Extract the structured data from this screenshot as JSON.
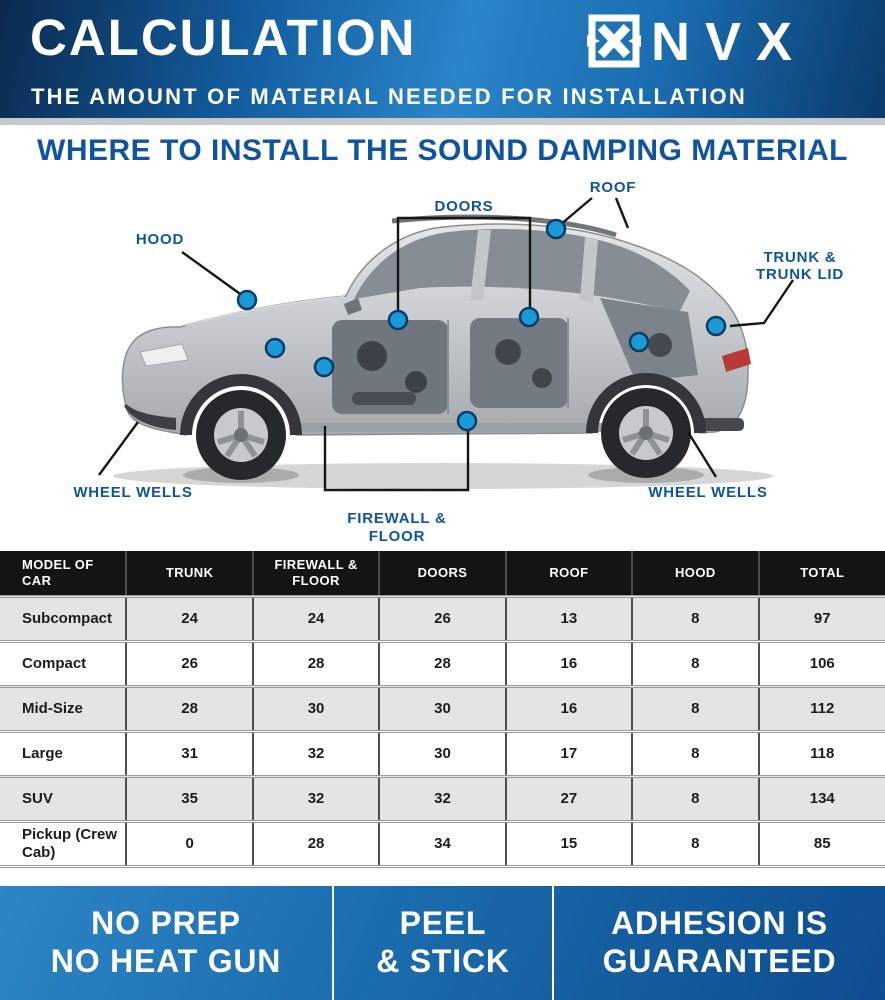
{
  "header": {
    "title": "CALCULATION",
    "brand": "NVX",
    "subtitle": "THE AMOUNT OF MATERIAL NEEDED FOR INSTALLATION"
  },
  "section": {
    "heading": "WHERE TO INSTALL THE SOUND DAMPING MATERIAL"
  },
  "diagram": {
    "labels": {
      "hood": "HOOD",
      "doors": "DOORS",
      "roof": "ROOF",
      "trunk_line1": "TRUNK &",
      "trunk_line2": "TRUNK LID",
      "wheel_wells_left": "WHEEL WELLS",
      "wheel_wells_right": "WHEEL WELLS",
      "firewall_line1": "FIREWALL &",
      "firewall_line2": "FLOOR"
    }
  },
  "table": {
    "columns": [
      "MODEL OF CAR",
      "TRUNK",
      "FIREWALL & FLOOR",
      "DOORS",
      "ROOF",
      "HOOD",
      "TOTAL"
    ],
    "rows": [
      [
        "Subcompact",
        "24",
        "24",
        "26",
        "13",
        "8",
        "97"
      ],
      [
        "Compact",
        "26",
        "28",
        "28",
        "16",
        "8",
        "106"
      ],
      [
        "Mid-Size",
        "28",
        "30",
        "30",
        "16",
        "8",
        "112"
      ],
      [
        "Large",
        "31",
        "32",
        "30",
        "17",
        "8",
        "118"
      ],
      [
        "SUV",
        "35",
        "32",
        "32",
        "27",
        "8",
        "134"
      ],
      [
        "Pickup (Crew Cab)",
        "0",
        "28",
        "34",
        "15",
        "8",
        "85"
      ]
    ]
  },
  "footer": {
    "items": [
      {
        "line1": "NO PREP",
        "line2": "NO HEAT GUN"
      },
      {
        "line1": "PEEL",
        "line2": "& STICK"
      },
      {
        "line1": "ADHESION IS",
        "line2": "GUARANTEED"
      }
    ]
  },
  "colors": {
    "accent": "#0f54a0",
    "dot": "#1a9ad6",
    "table_header_bg": "#141414",
    "row_alt": "#e3e4e4",
    "banner_blue_dark": "#0d4d8e",
    "banner_blue_light": "#2d85c6"
  }
}
